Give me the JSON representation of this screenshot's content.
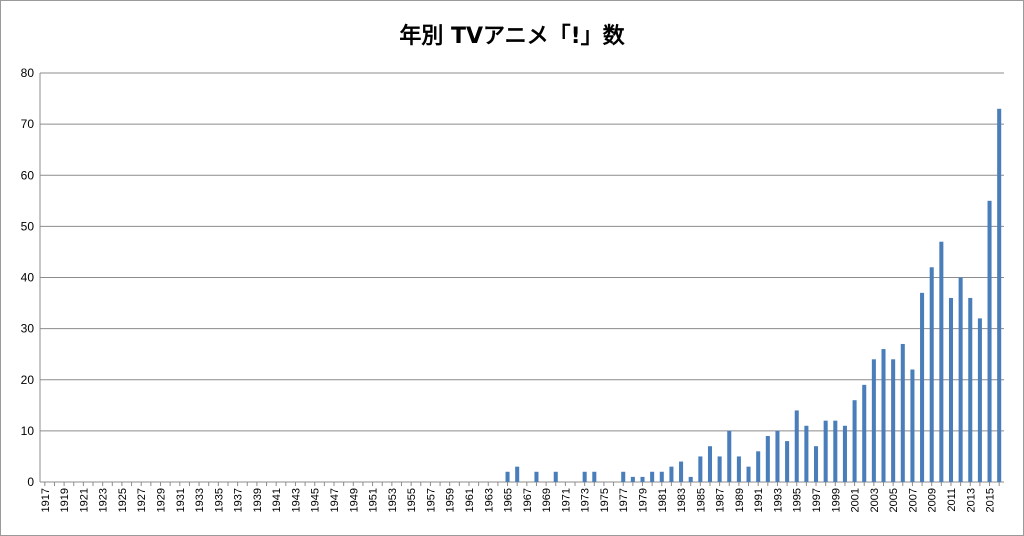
{
  "chart_data": {
    "type": "bar",
    "title": "年別 TVアニメ「!」数",
    "xlabel": "",
    "ylabel": "",
    "ylim": [
      0,
      80
    ],
    "yticks": [
      0,
      10,
      20,
      30,
      40,
      50,
      60,
      70,
      80
    ],
    "grid": true,
    "legend": "none",
    "bar_color": "#4a7ebb",
    "first_year": 1917,
    "last_year": 2016,
    "tick_every": 2,
    "categories": [
      "1917",
      "1918",
      "1919",
      "1920",
      "1921",
      "1922",
      "1923",
      "1924",
      "1925",
      "1926",
      "1927",
      "1928",
      "1929",
      "1930",
      "1931",
      "1932",
      "1933",
      "1934",
      "1935",
      "1936",
      "1937",
      "1938",
      "1939",
      "1940",
      "1941",
      "1942",
      "1943",
      "1944",
      "1945",
      "1946",
      "1947",
      "1948",
      "1949",
      "1950",
      "1951",
      "1952",
      "1953",
      "1954",
      "1955",
      "1956",
      "1957",
      "1958",
      "1959",
      "1960",
      "1961",
      "1962",
      "1963",
      "1964",
      "1965",
      "1966",
      "1967",
      "1968",
      "1969",
      "1970",
      "1971",
      "1972",
      "1973",
      "1974",
      "1975",
      "1976",
      "1977",
      "1978",
      "1979",
      "1980",
      "1981",
      "1982",
      "1983",
      "1984",
      "1985",
      "1986",
      "1987",
      "1988",
      "1989",
      "1990",
      "1991",
      "1992",
      "1993",
      "1994",
      "1995",
      "1996",
      "1997",
      "1998",
      "1999",
      "2000",
      "2001",
      "2002",
      "2003",
      "2004",
      "2005",
      "2006",
      "2007",
      "2008",
      "2009",
      "2010",
      "2011",
      "2012",
      "2013",
      "2014",
      "2015",
      "2016"
    ],
    "values": [
      0,
      0,
      0,
      0,
      0,
      0,
      0,
      0,
      0,
      0,
      0,
      0,
      0,
      0,
      0,
      0,
      0,
      0,
      0,
      0,
      0,
      0,
      0,
      0,
      0,
      0,
      0,
      0,
      0,
      0,
      0,
      0,
      0,
      0,
      0,
      0,
      0,
      0,
      0,
      0,
      0,
      0,
      0,
      0,
      0,
      0,
      0,
      0,
      2,
      3,
      0,
      2,
      0,
      2,
      0,
      0,
      2,
      2,
      0,
      0,
      2,
      1,
      1,
      2,
      2,
      3,
      4,
      1,
      5,
      7,
      5,
      10,
      5,
      3,
      6,
      9,
      10,
      8,
      14,
      11,
      7,
      12,
      12,
      11,
      16,
      19,
      24,
      26,
      24,
      27,
      22,
      37,
      42,
      47,
      36,
      40,
      36,
      32,
      55,
      73
    ]
  }
}
